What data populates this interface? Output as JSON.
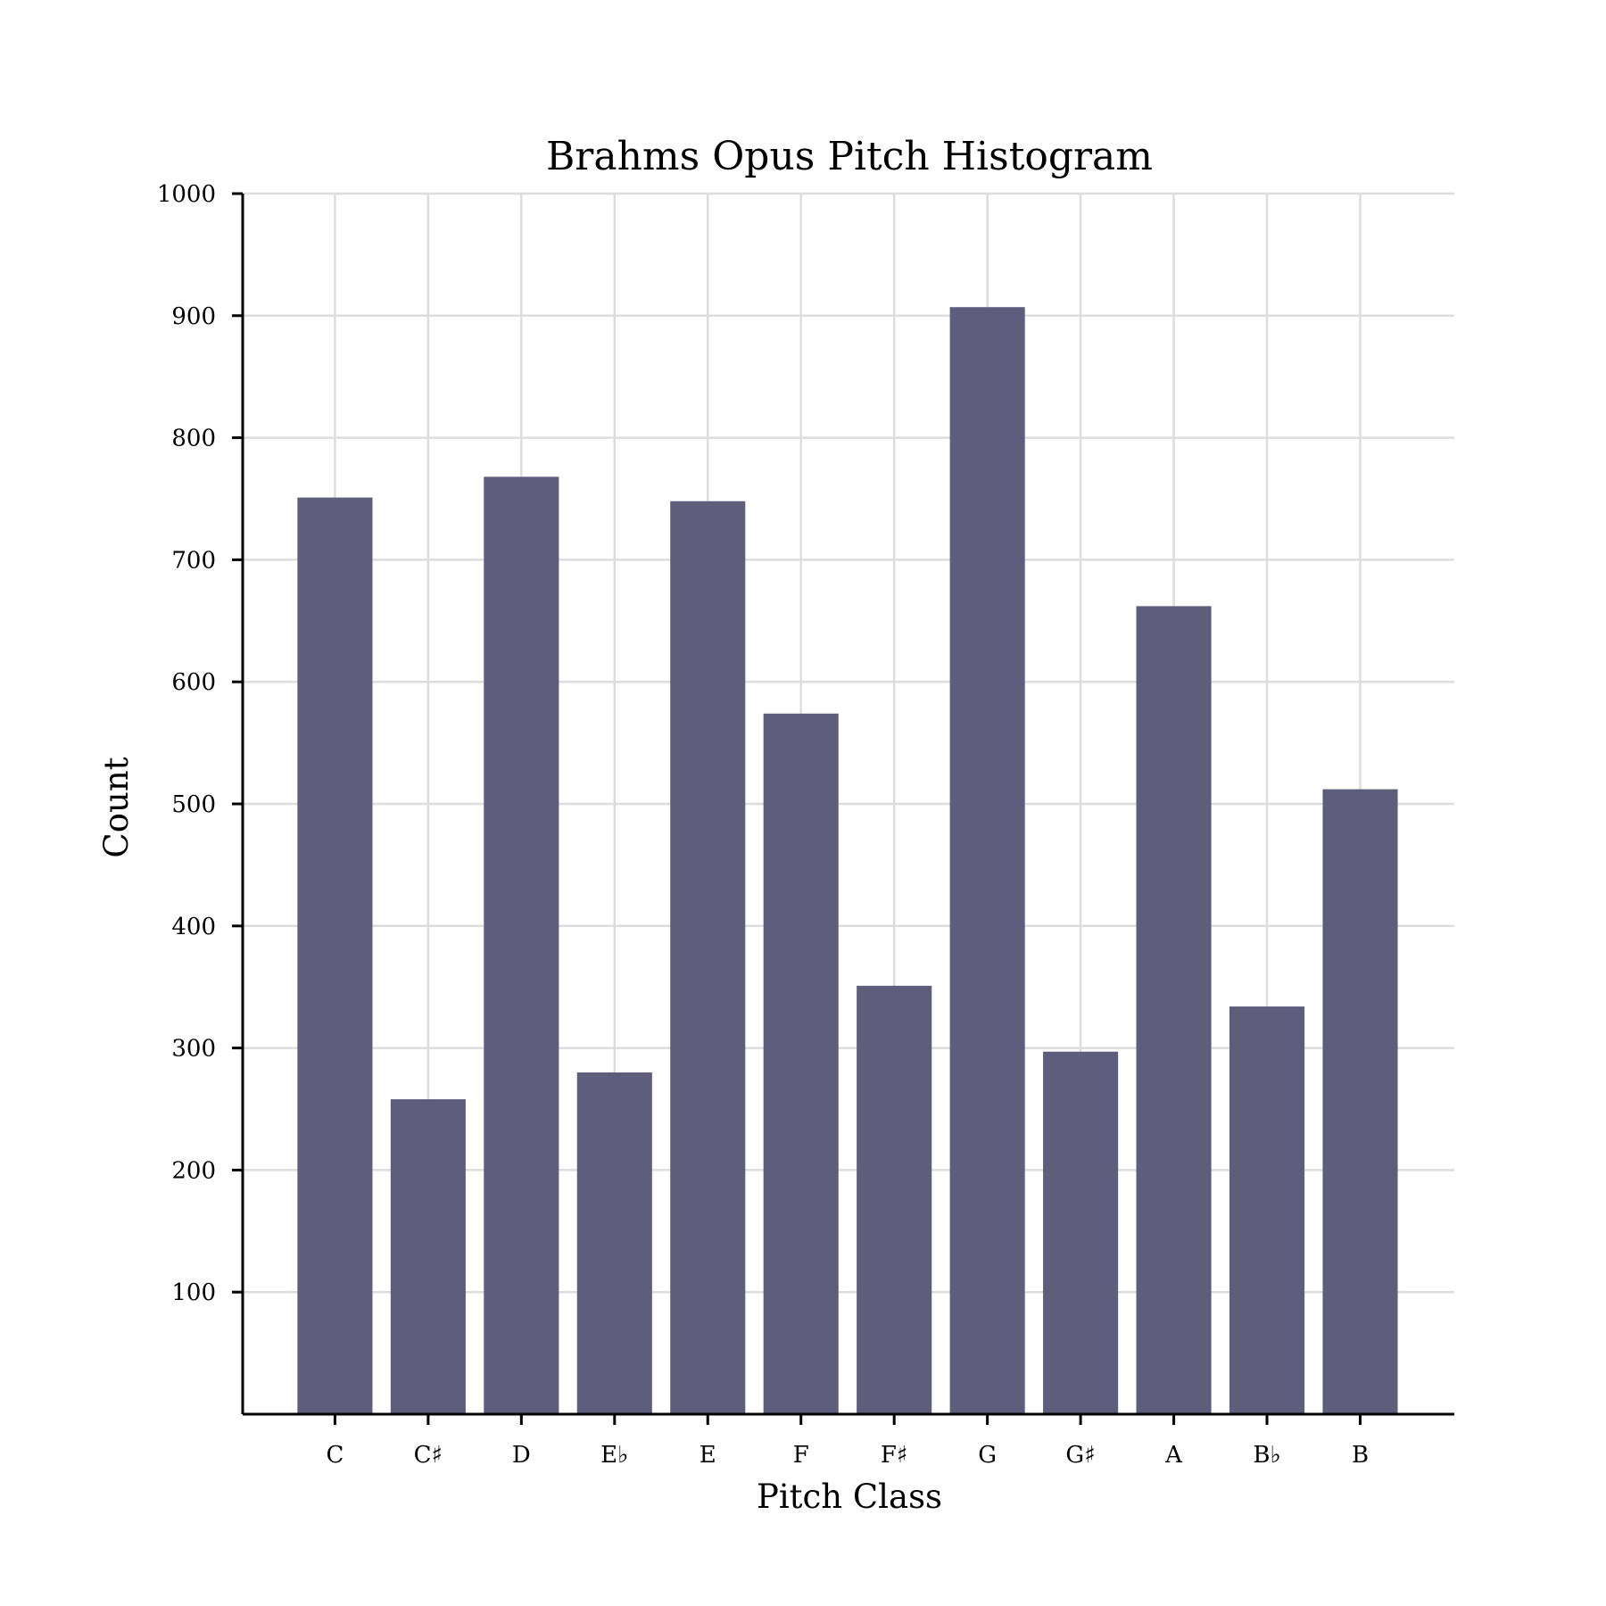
{
  "chart_data": {
    "type": "bar",
    "title": "Brahms Opus Pitch Histogram",
    "xlabel": "Pitch Class",
    "ylabel": "Count",
    "categories": [
      "C",
      "C♯",
      "D",
      "E♭",
      "E",
      "F",
      "F♯",
      "G",
      "G♯",
      "A",
      "B♭",
      "B"
    ],
    "values": [
      751,
      258,
      768,
      280,
      748,
      574,
      351,
      907,
      297,
      662,
      334,
      512
    ],
    "ylim": [
      0,
      1000
    ],
    "yticks": [
      100,
      200,
      300,
      400,
      500,
      600,
      700,
      800,
      900,
      1000
    ],
    "grid": true,
    "bar_color": "#5f5d7c",
    "grid_color": "#dddddd"
  }
}
